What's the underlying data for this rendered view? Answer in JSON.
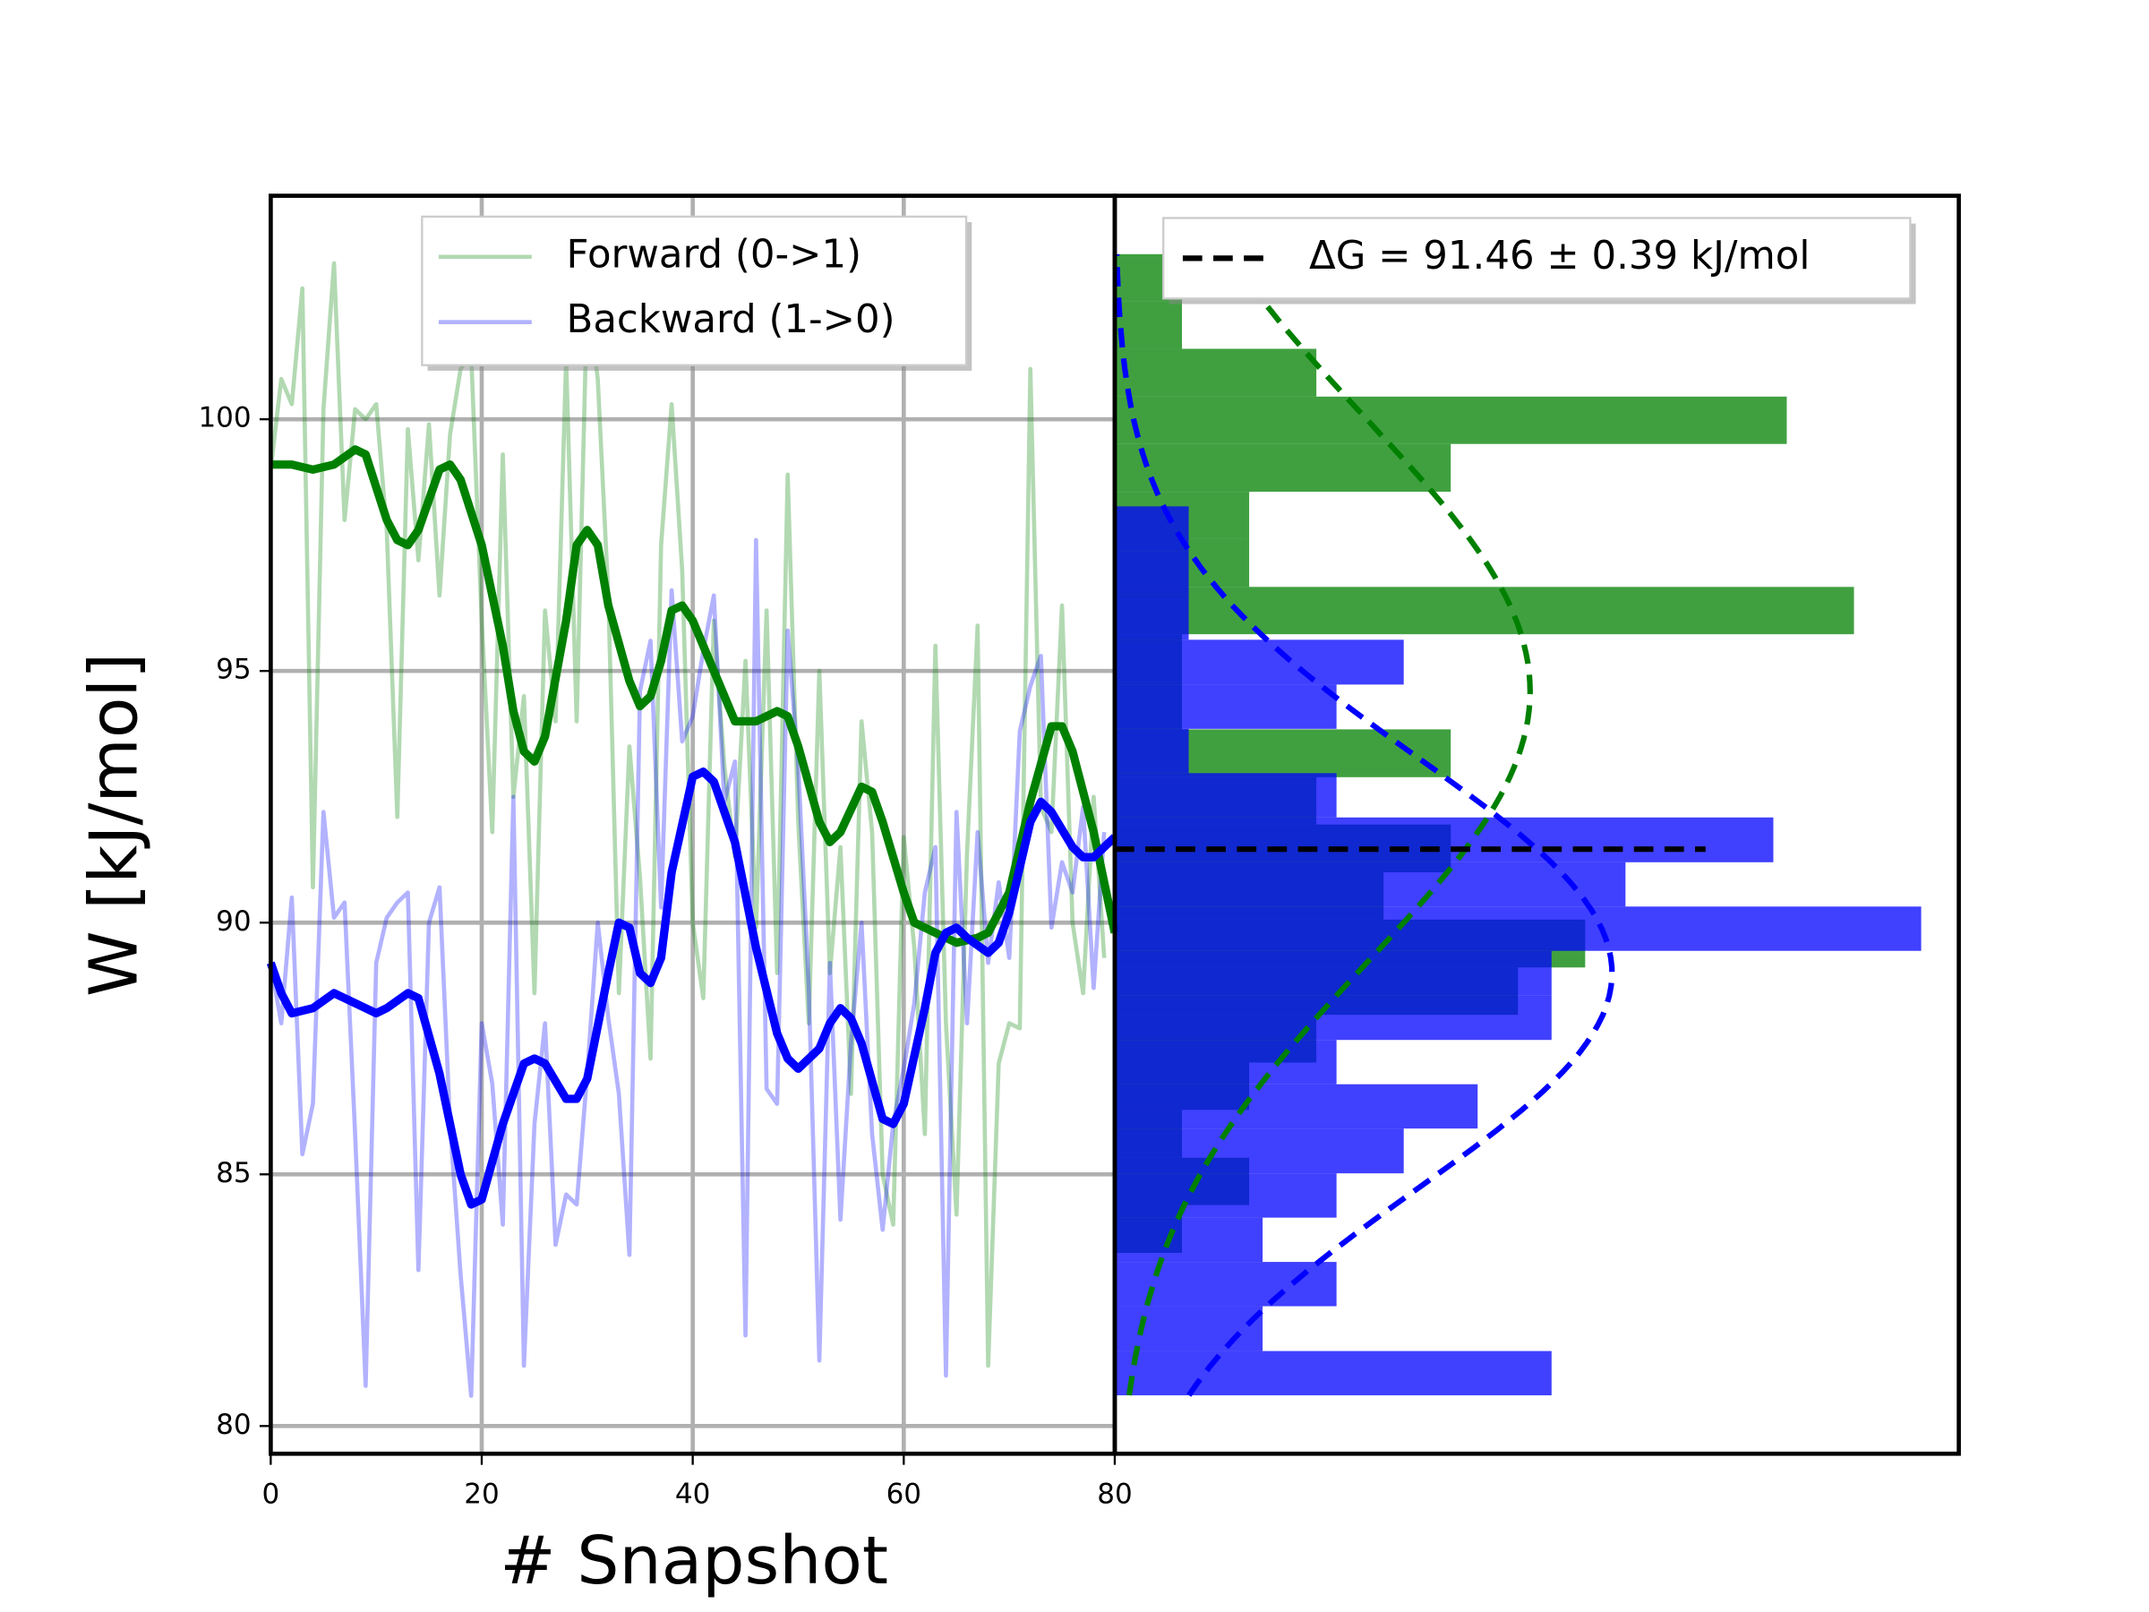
{
  "chart_data": [
    {
      "type": "line",
      "xlabel": "# Snapshot",
      "ylabel": "W [kJ/mol]",
      "xlim": [
        0,
        80
      ],
      "ylim": [
        79.45,
        104.44
      ],
      "xticks": [
        0,
        20,
        40,
        60,
        80
      ],
      "yticks": [
        80,
        85,
        90,
        95,
        100
      ],
      "grid": true,
      "legend": "upper center",
      "series": [
        {
          "name": "Forward (0->1)",
          "color": "#008000",
          "alpha": 0.3,
          "x": [
            0,
            1,
            2,
            3,
            4,
            5,
            6,
            7,
            8,
            9,
            10,
            11,
            12,
            13,
            14,
            15,
            16,
            17,
            18,
            19,
            20,
            21,
            22,
            23,
            24,
            25,
            26,
            27,
            28,
            29,
            30,
            31,
            32,
            33,
            34,
            35,
            36,
            37,
            38,
            39,
            40,
            41,
            42,
            43,
            44,
            45,
            46,
            47,
            48,
            49,
            50,
            51,
            52,
            53,
            54,
            55,
            56,
            57,
            58,
            59,
            60,
            61,
            62,
            63,
            64,
            65,
            66,
            67,
            68,
            69,
            70,
            71,
            72,
            73,
            74,
            75,
            76,
            77,
            78,
            79
          ],
          "values": [
            99.0,
            100.8,
            100.3,
            102.6,
            90.7,
            100.2,
            103.1,
            98.0,
            100.2,
            100.0,
            100.3,
            97.8,
            92.1,
            99.8,
            97.2,
            99.9,
            96.5,
            99.7,
            101.0,
            101.3,
            96.0,
            91.8,
            99.3,
            92.5,
            94.5,
            88.6,
            96.2,
            94.0,
            101.2,
            94.0,
            102.5,
            100.8,
            96.5,
            88.6,
            93.5,
            90.9,
            87.3,
            97.5,
            100.3,
            97.0,
            90.0,
            88.5,
            96.0,
            93.1,
            91.3,
            95.2,
            89.9,
            96.2,
            89.0,
            98.9,
            92.0,
            88.0,
            95.0,
            89.0,
            91.5,
            86.6,
            94.0,
            91.8,
            85.0,
            84.0,
            91.7,
            89.5,
            85.8,
            95.5,
            88.0,
            84.2,
            91.4,
            95.9,
            81.2,
            87.2,
            88.0,
            87.9,
            101.0,
            92.3,
            91.8,
            96.3,
            90.0,
            88.6,
            92.5,
            89.3
          ]
        },
        {
          "name": "Backward (1->0)",
          "color": "#0000ff",
          "alpha": 0.3,
          "x": [
            0,
            1,
            2,
            3,
            4,
            5,
            6,
            7,
            8,
            9,
            10,
            11,
            12,
            13,
            14,
            15,
            16,
            17,
            18,
            19,
            20,
            21,
            22,
            23,
            24,
            25,
            26,
            27,
            28,
            29,
            30,
            31,
            32,
            33,
            34,
            35,
            36,
            37,
            38,
            39,
            40,
            41,
            42,
            43,
            44,
            45,
            46,
            47,
            48,
            49,
            50,
            51,
            52,
            53,
            54,
            55,
            56,
            57,
            58,
            59,
            60,
            61,
            62,
            63,
            64,
            65,
            66,
            67,
            68,
            69,
            70,
            71,
            72,
            73,
            74,
            75,
            76,
            77,
            78,
            79
          ],
          "values": [
            89.2,
            88.0,
            90.5,
            85.4,
            86.4,
            92.2,
            90.1,
            90.4,
            85.8,
            80.8,
            89.2,
            90.1,
            90.4,
            90.6,
            83.1,
            90.0,
            90.7,
            86.0,
            83.0,
            80.6,
            88.0,
            86.8,
            84.0,
            92.5,
            81.2,
            86.0,
            88.0,
            83.6,
            84.6,
            84.4,
            87.0,
            90.0,
            88.1,
            86.6,
            83.4,
            94.6,
            95.6,
            90.3,
            96.6,
            93.6,
            94.1,
            95.4,
            96.5,
            92.4,
            93.2,
            81.8,
            97.6,
            86.7,
            86.4,
            95.8,
            93.1,
            88.7,
            81.3,
            89.2,
            84.1,
            87.6,
            90.0,
            85.8,
            83.9,
            86.0,
            87.1,
            88.4,
            90.6,
            91.5,
            81.0,
            92.2,
            88.0,
            91.8,
            89.2,
            90.8,
            89.3,
            93.8,
            94.7,
            95.3,
            89.9,
            91.2,
            90.6,
            92.3,
            88.7,
            91.8
          ]
        },
        {
          "color": "#008000",
          "alpha": 1,
          "x": [
            0,
            2,
            4,
            6,
            8,
            9,
            11,
            12,
            13,
            14,
            16,
            17,
            18,
            20,
            22,
            23,
            24,
            25,
            26,
            28,
            29,
            30,
            31,
            32,
            34,
            35,
            36,
            37,
            38,
            39,
            40,
            42,
            44,
            46,
            48,
            49,
            50,
            52,
            53,
            54,
            56,
            57,
            58,
            60,
            61,
            63,
            65,
            67,
            68,
            70,
            72,
            74,
            75,
            76,
            78,
            79,
            80
          ],
          "values": [
            99.1,
            99.1,
            99.0,
            99.1,
            99.4,
            99.3,
            98.0,
            97.6,
            97.5,
            97.8,
            99.0,
            99.1,
            98.8,
            97.5,
            95.5,
            94.2,
            93.4,
            93.2,
            93.7,
            96.0,
            97.5,
            97.8,
            97.5,
            96.3,
            94.8,
            94.3,
            94.5,
            95.2,
            96.2,
            96.3,
            96.0,
            95.0,
            94.0,
            94.0,
            94.2,
            94.1,
            93.5,
            92.0,
            91.6,
            91.8,
            92.7,
            92.6,
            92.0,
            90.6,
            90.0,
            89.8,
            89.6,
            89.7,
            89.8,
            90.6,
            92.4,
            93.9,
            93.9,
            93.4,
            91.8,
            90.8,
            89.8
          ]
        },
        {
          "color": "#0000ff",
          "alpha": 1,
          "x": [
            0,
            1,
            2,
            4,
            6,
            8,
            10,
            11,
            13,
            14,
            16,
            18,
            19,
            20,
            22,
            24,
            25,
            26,
            28,
            29,
            30,
            32,
            33,
            34,
            35,
            36,
            37,
            38,
            40,
            41,
            42,
            44,
            46,
            48,
            49,
            50,
            52,
            53,
            54,
            55,
            56,
            58,
            59,
            60,
            62,
            63,
            64,
            65,
            66,
            68,
            69,
            70,
            72,
            73,
            74,
            76,
            77,
            78,
            79,
            80
          ],
          "values": [
            89.2,
            88.6,
            88.2,
            88.3,
            88.6,
            88.4,
            88.2,
            88.3,
            88.6,
            88.5,
            87.0,
            85.0,
            84.4,
            84.5,
            86.0,
            87.2,
            87.3,
            87.2,
            86.5,
            86.5,
            86.9,
            89.0,
            90.0,
            89.9,
            89.0,
            88.8,
            89.3,
            91.0,
            92.9,
            93.0,
            92.8,
            91.6,
            89.5,
            87.8,
            87.3,
            87.1,
            87.5,
            88.0,
            88.3,
            88.1,
            87.6,
            86.1,
            86.0,
            86.4,
            88.3,
            89.4,
            89.8,
            89.9,
            89.7,
            89.4,
            89.6,
            90.2,
            92.0,
            92.4,
            92.2,
            91.5,
            91.3,
            91.3,
            91.5,
            91.7
          ]
        }
      ]
    },
    {
      "type": "histogram",
      "orientation": "horizontal",
      "xlim": [
        0,
        12.56
      ],
      "ylim": [
        79.45,
        104.44
      ],
      "legend": "upper center",
      "series": [
        {
          "color": "#008000",
          "alpha": 0.75,
          "bins": [
            80.61,
            81.55,
            82.5,
            83.44,
            84.39,
            85.33,
            86.28,
            87.22,
            88.17,
            89.11,
            90.06,
            91.0,
            91.95,
            92.89,
            93.84,
            94.78,
            95.73,
            96.67,
            97.62,
            98.56,
            99.51,
            100.45,
            101.4,
            102.34,
            103.28
          ],
          "values": [
            0,
            0,
            0,
            1,
            2,
            1,
            2,
            3,
            6,
            7,
            4,
            5,
            3,
            5,
            1,
            1,
            11,
            2,
            2,
            5,
            10,
            3,
            1,
            1
          ],
          "fit": {
            "mean": 94.6,
            "std": 5.4,
            "peak": 6.18
          }
        },
        {
          "color": "#0000ff",
          "alpha": 0.75,
          "bins": [
            80.61,
            81.49,
            82.38,
            83.26,
            84.14,
            85.02,
            85.91,
            86.79,
            87.67,
            88.56,
            89.44,
            90.32,
            91.2,
            92.09,
            92.97,
            93.85,
            94.73,
            95.62,
            96.5,
            97.38,
            98.27
          ],
          "values": [
            6.5,
            2.2,
            3.3,
            2.2,
            3.3,
            4.3,
            5.4,
            3.3,
            6.5,
            6.5,
            12,
            7.6,
            9.8,
            3.3,
            1.1,
            3.3,
            4.3,
            1.1,
            1.1,
            1.1
          ],
          "fit": {
            "mean": 89.0,
            "std": 4.3,
            "peak": 7.4
          }
        }
      ],
      "dg_line": {
        "value": 91.46,
        "color": "#000000",
        "label": "ΔG = 91.46 ± 0.39 kJ/mol"
      }
    }
  ]
}
